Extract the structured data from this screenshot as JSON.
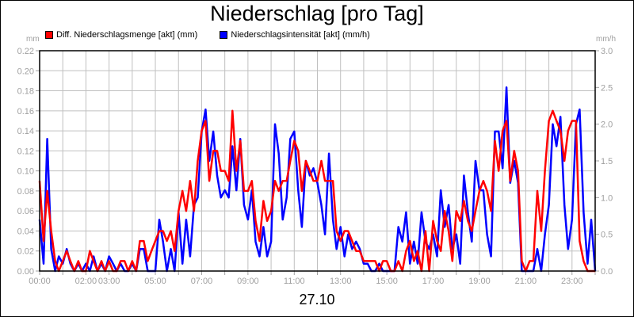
{
  "title": "Niederschlag [pro Tag]",
  "date_label": "27.10",
  "left_unit": "mm",
  "right_unit": "mm/h",
  "legend": [
    {
      "label": "Diff. Niederschlagsmenge [akt] (mm)",
      "color": "#ff0000"
    },
    {
      "label": "Niederschlagsintensität [akt] (mm/h)",
      "color": "#0000ff"
    }
  ],
  "colors": {
    "red_series": "#ff0000",
    "blue_series": "#0000ff",
    "grid": "#c0c0c0",
    "axis_text": "#a0a0a0"
  },
  "chart_data": {
    "type": "line",
    "title": "Niederschlag [pro Tag]",
    "xlabel": "27.10",
    "ylabel_left": "mm",
    "ylabel_right": "mm/h",
    "ylim_left": [
      0,
      0.22
    ],
    "ylim_right": [
      0,
      3.0
    ],
    "grid": true,
    "legend_position": "top-left",
    "left_ticks": [
      "0.00",
      "0.02",
      "0.04",
      "0.06",
      "0.08",
      "0.10",
      "0.12",
      "0.14",
      "0.16",
      "0.18",
      "0.20",
      "0.22"
    ],
    "right_ticks": [
      "0.0",
      "0.5",
      "1.0",
      "1.5",
      "2.0",
      "2.5",
      "3.0"
    ],
    "x_tick_labels": [
      {
        "hour": 0,
        "label": "00:00"
      },
      {
        "hour": 2,
        "label": "02:00"
      },
      {
        "hour": 3,
        "label": "03:00"
      },
      {
        "hour": 5,
        "label": "05:00"
      },
      {
        "hour": 7,
        "label": "07:00"
      },
      {
        "hour": 9,
        "label": "09:00"
      },
      {
        "hour": 11,
        "label": "11:00"
      },
      {
        "hour": 13,
        "label": "13:00"
      },
      {
        "hour": 15,
        "label": "15:00"
      },
      {
        "hour": 17,
        "label": "17:00"
      },
      {
        "hour": 19,
        "label": "19:00"
      },
      {
        "hour": 21,
        "label": "21:00"
      },
      {
        "hour": 23,
        "label": "23:00"
      }
    ],
    "x_range_hours": [
      0,
      24
    ],
    "series": [
      {
        "name": "Diff. Niederschlagsmenge [akt] (mm)",
        "axis": "left",
        "color": "#ff0000",
        "x_hours": [
          0,
          0.17,
          0.33,
          0.5,
          0.67,
          0.83,
          1,
          1.17,
          1.33,
          1.5,
          1.67,
          1.83,
          2,
          2.17,
          2.33,
          2.5,
          2.67,
          2.83,
          3,
          3.17,
          3.33,
          3.5,
          3.67,
          3.83,
          4,
          4.17,
          4.33,
          4.5,
          4.67,
          4.83,
          5,
          5.17,
          5.33,
          5.5,
          5.67,
          5.83,
          6,
          6.17,
          6.33,
          6.5,
          6.67,
          6.83,
          7,
          7.17,
          7.33,
          7.5,
          7.67,
          7.83,
          8,
          8.17,
          8.33,
          8.5,
          8.67,
          8.83,
          9,
          9.17,
          9.33,
          9.5,
          9.67,
          9.83,
          10,
          10.17,
          10.33,
          10.5,
          10.67,
          10.83,
          11,
          11.17,
          11.33,
          11.5,
          11.67,
          11.83,
          12,
          12.17,
          12.33,
          12.5,
          12.67,
          12.83,
          13,
          13.17,
          13.33,
          13.5,
          13.67,
          13.83,
          14,
          14.17,
          14.33,
          14.5,
          14.67,
          14.83,
          15,
          15.17,
          15.33,
          15.5,
          15.67,
          15.83,
          16,
          16.17,
          16.33,
          16.5,
          16.67,
          16.83,
          17,
          17.17,
          17.33,
          17.5,
          17.67,
          17.83,
          18,
          18.17,
          18.33,
          18.5,
          18.67,
          18.83,
          19,
          19.17,
          19.33,
          19.5,
          19.67,
          19.83,
          20,
          20.17,
          20.33,
          20.5,
          20.67,
          20.83,
          21,
          21.17,
          21.33,
          21.5,
          21.67,
          21.83,
          22,
          22.17,
          22.33,
          22.5,
          22.67,
          22.83,
          23,
          23.17,
          23.33,
          23.5,
          23.67,
          23.83,
          24
        ],
        "values": [
          0.09,
          0.03,
          0.08,
          0.04,
          0.01,
          0.0,
          0.01,
          0.02,
          0.01,
          0.0,
          0.01,
          0.0,
          0.0,
          0.02,
          0.01,
          0.0,
          0.01,
          0.0,
          0.01,
          0.0,
          0.0,
          0.01,
          0.01,
          0.0,
          0.01,
          0.0,
          0.03,
          0.03,
          0.01,
          0.02,
          0.03,
          0.04,
          0.04,
          0.03,
          0.04,
          0.02,
          0.06,
          0.08,
          0.06,
          0.09,
          0.06,
          0.11,
          0.14,
          0.15,
          0.09,
          0.12,
          0.12,
          0.1,
          0.1,
          0.09,
          0.16,
          0.1,
          0.13,
          0.08,
          0.08,
          0.09,
          0.05,
          0.03,
          0.07,
          0.05,
          0.06,
          0.09,
          0.08,
          0.09,
          0.09,
          0.11,
          0.13,
          0.12,
          0.08,
          0.11,
          0.1,
          0.09,
          0.09,
          0.11,
          0.09,
          0.09,
          0.09,
          0.04,
          0.03,
          0.04,
          0.04,
          0.03,
          0.02,
          0.02,
          0.01,
          0.01,
          0.01,
          0.01,
          0.0,
          0.01,
          0.01,
          0.0,
          0.0,
          0.01,
          0.0,
          0.02,
          0.03,
          0.01,
          0.02,
          0.0,
          0.04,
          0.0,
          0.05,
          0.03,
          0.02,
          0.06,
          0.04,
          0.01,
          0.06,
          0.05,
          0.07,
          0.05,
          0.04,
          0.06,
          0.08,
          0.09,
          0.08,
          0.06,
          0.13,
          0.1,
          0.14,
          0.15,
          0.09,
          0.12,
          0.1,
          0.01,
          0.0,
          0.01,
          0.01,
          0.08,
          0.04,
          0.1,
          0.15,
          0.16,
          0.15,
          0.14,
          0.11,
          0.14,
          0.15,
          0.15,
          0.03,
          0.01,
          0.0,
          0.0,
          0.0,
          0.0,
          0.0
        ]
      },
      {
        "name": "Niederschlagsintensität [akt] (mm/h)",
        "axis": "right",
        "color": "#0000ff",
        "x_hours": [
          0,
          0.17,
          0.33,
          0.5,
          0.67,
          0.83,
          1,
          1.17,
          1.33,
          1.5,
          1.67,
          1.83,
          2,
          2.17,
          2.33,
          2.5,
          2.67,
          2.83,
          3,
          3.17,
          3.33,
          3.5,
          3.67,
          3.83,
          4,
          4.17,
          4.33,
          4.5,
          4.67,
          4.83,
          5,
          5.17,
          5.33,
          5.5,
          5.67,
          5.83,
          6,
          6.17,
          6.33,
          6.5,
          6.67,
          6.83,
          7,
          7.17,
          7.33,
          7.5,
          7.67,
          7.83,
          8,
          8.17,
          8.33,
          8.5,
          8.67,
          8.83,
          9,
          9.17,
          9.33,
          9.5,
          9.67,
          9.83,
          10,
          10.17,
          10.33,
          10.5,
          10.67,
          10.83,
          11,
          11.17,
          11.33,
          11.5,
          11.67,
          11.83,
          12,
          12.17,
          12.33,
          12.5,
          12.67,
          12.83,
          13,
          13.17,
          13.33,
          13.5,
          13.67,
          13.83,
          14,
          14.17,
          14.33,
          14.5,
          14.67,
          14.83,
          15,
          15.17,
          15.33,
          15.5,
          15.67,
          15.83,
          16,
          16.17,
          16.33,
          16.5,
          16.67,
          16.83,
          17,
          17.17,
          17.33,
          17.5,
          17.67,
          17.83,
          18,
          18.17,
          18.33,
          18.5,
          18.67,
          18.83,
          19,
          19.17,
          19.33,
          19.5,
          19.67,
          19.83,
          20,
          20.17,
          20.33,
          20.5,
          20.67,
          20.83,
          21,
          21.17,
          21.33,
          21.5,
          21.67,
          21.83,
          22,
          22.17,
          22.33,
          22.5,
          22.67,
          22.83,
          23,
          23.17,
          23.33,
          23.5,
          23.67,
          23.83,
          24
        ],
        "values": [
          0.7,
          0.1,
          1.8,
          0.3,
          0.0,
          0.2,
          0.1,
          0.3,
          0.1,
          0.0,
          0.1,
          0.0,
          0.1,
          0.0,
          0.2,
          0.0,
          0.1,
          0.0,
          0.2,
          0.1,
          0.0,
          0.1,
          0.0,
          0.0,
          0.1,
          0.0,
          0.3,
          0.3,
          0.0,
          0.0,
          0.0,
          0.7,
          0.4,
          0.0,
          0.3,
          0.0,
          0.8,
          0.1,
          0.7,
          0.2,
          0.9,
          1.0,
          1.9,
          2.2,
          1.5,
          1.9,
          1.3,
          1.0,
          1.1,
          1.0,
          1.7,
          1.1,
          1.8,
          0.9,
          0.7,
          1.1,
          0.4,
          0.2,
          0.6,
          0.2,
          0.4,
          2.0,
          1.6,
          0.7,
          1.0,
          1.8,
          1.9,
          1.1,
          0.6,
          1.5,
          1.3,
          1.4,
          1.2,
          0.9,
          0.5,
          1.6,
          0.7,
          0.3,
          0.6,
          0.2,
          0.5,
          0.3,
          0.4,
          0.3,
          0.1,
          0.1,
          0.0,
          0.0,
          0.1,
          0.0,
          0.0,
          0.0,
          0.0,
          0.6,
          0.4,
          0.8,
          0.1,
          0.4,
          0.1,
          0.8,
          0.4,
          0.3,
          0.5,
          0.2,
          1.1,
          0.6,
          0.9,
          0.3,
          0.5,
          0.1,
          1.3,
          0.8,
          0.4,
          1.5,
          1.1,
          1.1,
          0.5,
          0.2,
          1.9,
          1.9,
          1.4,
          2.5,
          1.2,
          1.5,
          1.2,
          0.0,
          0.0,
          0.0,
          0.0,
          0.3,
          0.0,
          0.5,
          0.9,
          2.0,
          1.7,
          2.1,
          0.9,
          0.3,
          0.7,
          2.0,
          2.2,
          0.8,
          0.1,
          0.7,
          0.0,
          0.0,
          0.0
        ]
      }
    ]
  }
}
